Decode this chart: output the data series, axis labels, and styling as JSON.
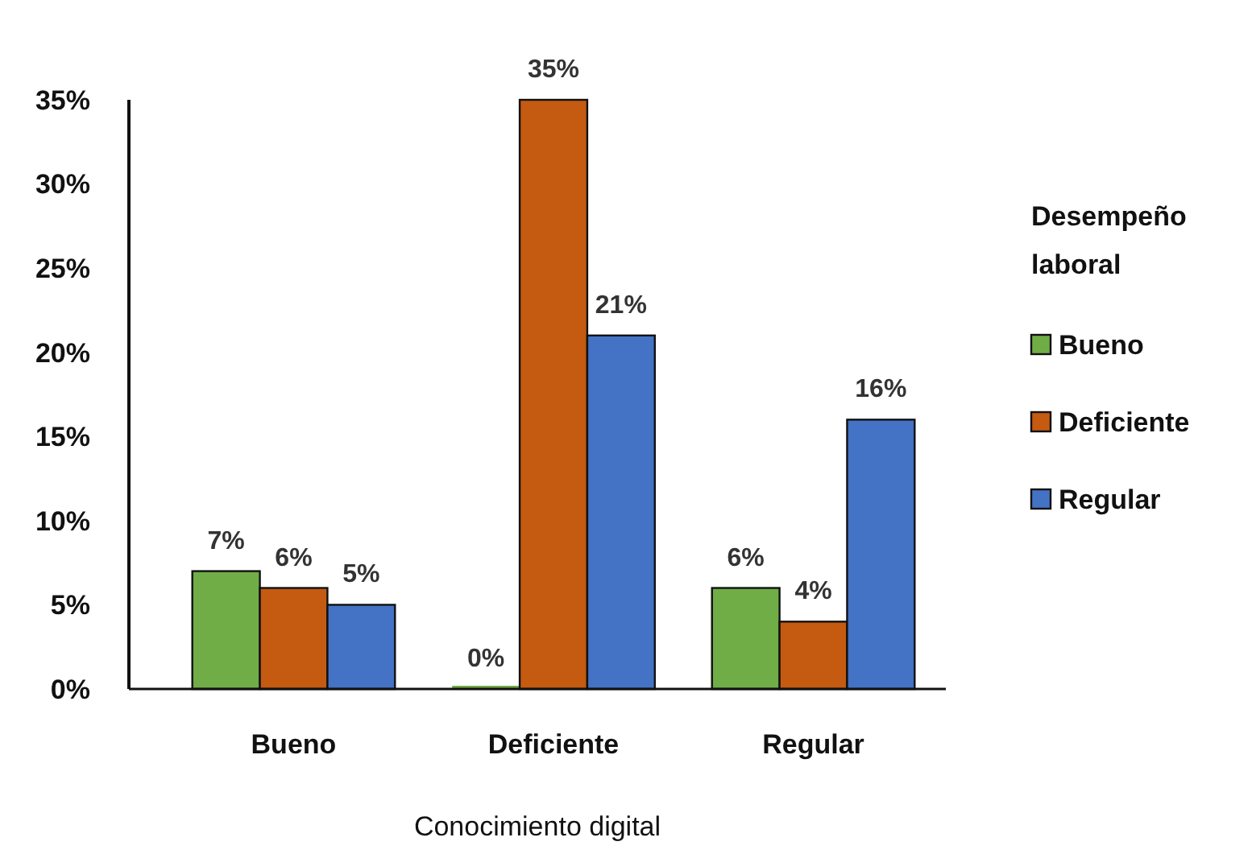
{
  "chart_data": {
    "type": "bar",
    "xlabel": "Conocimiento digital",
    "legend_title": "Desempeño laboral",
    "categories": [
      "Bueno",
      "Deficiente",
      "Regular"
    ],
    "series": [
      {
        "name": "Bueno",
        "color": "#70ad47",
        "values": [
          7,
          0,
          6
        ],
        "value_labels": [
          "7%",
          "0%",
          "6%"
        ]
      },
      {
        "name": "Deficiente",
        "color": "#c55a11",
        "values": [
          6,
          35,
          4
        ],
        "value_labels": [
          "6%",
          "35%",
          "4%"
        ]
      },
      {
        "name": "Regular",
        "color": "#4472c4",
        "values": [
          5,
          21,
          16
        ],
        "value_labels": [
          "5%",
          "21%",
          "16%"
        ]
      }
    ],
    "ylim": [
      0,
      35
    ],
    "yticks": [
      {
        "value": 0,
        "label": "0%"
      },
      {
        "value": 5,
        "label": "5%"
      },
      {
        "value": 10,
        "label": "10%"
      },
      {
        "value": 15,
        "label": "15%"
      },
      {
        "value": 20,
        "label": "20%"
      },
      {
        "value": 25,
        "label": "25%"
      },
      {
        "value": 30,
        "label": "30%"
      },
      {
        "value": 35,
        "label": "35%"
      }
    ],
    "grid": false,
    "legend": "right"
  }
}
